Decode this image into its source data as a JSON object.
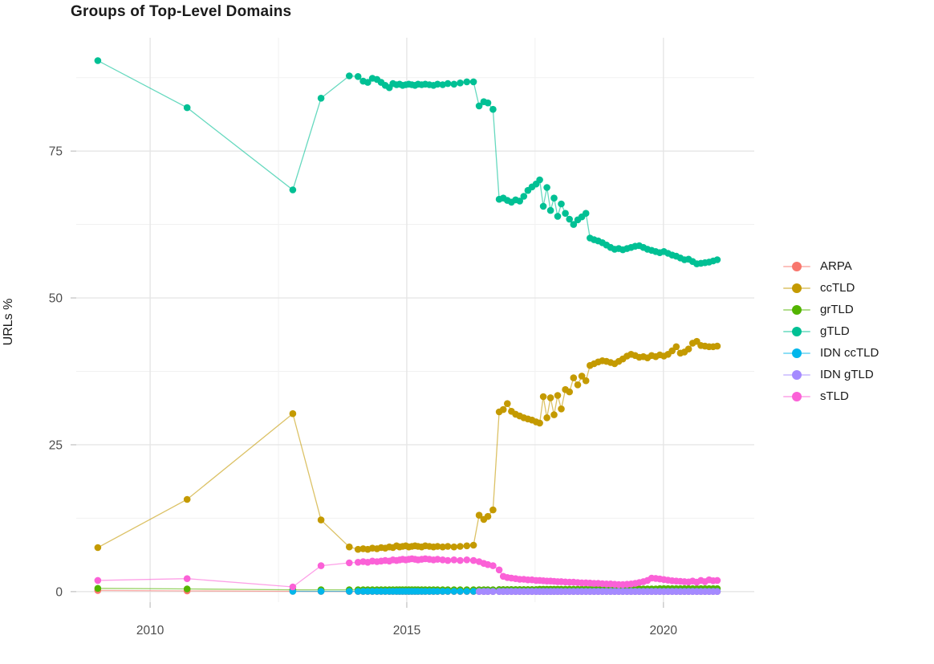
{
  "chart_data": {
    "type": "line",
    "title": "Groups of Top-Level Domains",
    "xlabel": "",
    "ylabel": "URLs %",
    "legend_position": "right",
    "grid": "major+minor",
    "xlim": [
      2008.56,
      2021.77
    ],
    "ylim": [
      -1.8,
      94.3
    ],
    "x_ticks": [
      {
        "value": 2010,
        "label": "2010"
      },
      {
        "value": 2015,
        "label": "2015"
      },
      {
        "value": 2020,
        "label": "2020"
      }
    ],
    "x_minor": [
      2012.5,
      2017.5
    ],
    "y_ticks": [
      {
        "value": 0,
        "label": "0"
      },
      {
        "value": 25,
        "label": "25"
      },
      {
        "value": 50,
        "label": "50"
      },
      {
        "value": 75,
        "label": "75"
      }
    ],
    "y_minor": [
      12.5,
      37.5,
      62.5,
      87.5
    ],
    "x": [
      2008.98,
      2010.72,
      2012.78,
      2013.33,
      2013.88,
      2014.05,
      2014.15,
      2014.24,
      2014.33,
      2014.42,
      2014.5,
      2014.58,
      2014.66,
      2014.73,
      2014.8,
      2014.86,
      2014.92,
      2014.98,
      2015.04,
      2015.1,
      2015.16,
      2015.22,
      2015.29,
      2015.36,
      2015.44,
      2015.52,
      2015.6,
      2015.7,
      2015.8,
      2015.92,
      2016.04,
      2016.17,
      2016.3,
      2016.41,
      2016.5,
      2016.58,
      2016.68,
      2016.8,
      2016.88,
      2016.96,
      2017.04,
      2017.12,
      2017.2,
      2017.28,
      2017.36,
      2017.44,
      2017.52,
      2017.59,
      2017.66,
      2017.73,
      2017.8,
      2017.87,
      2017.94,
      2018.01,
      2018.09,
      2018.17,
      2018.25,
      2018.33,
      2018.41,
      2018.49,
      2018.57,
      2018.65,
      2018.73,
      2018.81,
      2018.89,
      2018.97,
      2019.05,
      2019.13,
      2019.21,
      2019.29,
      2019.37,
      2019.45,
      2019.53,
      2019.61,
      2019.69,
      2019.77,
      2019.85,
      2019.93,
      2020.01,
      2020.09,
      2020.17,
      2020.25,
      2020.33,
      2020.41,
      2020.49,
      2020.57,
      2020.65,
      2020.73,
      2020.81,
      2020.89,
      2020.97,
      2021.05
    ],
    "series": [
      {
        "name": "ARPA",
        "color": "#F8766D",
        "values": [
          0.2,
          0.12,
          0.05,
          0.03,
          0.02,
          0.02,
          0.02,
          0.02,
          0.02,
          0.02,
          0.02,
          0.02,
          0.02,
          0.02,
          0.02,
          0.02,
          0.02,
          0.02,
          0.02,
          0.02,
          0.02,
          0.02,
          0.02,
          0.02,
          0.02,
          0.02,
          0.02,
          0.02,
          0.02,
          0.02,
          0.02,
          0.02,
          0.02,
          0.02,
          0.02,
          0.02,
          0.02,
          0.02,
          0.02,
          0.02,
          0.02,
          0.02,
          0.02,
          0.02,
          0.02,
          0.02,
          0.02,
          0.02,
          0.02,
          0.02,
          0.02,
          0.02,
          0.02,
          0.02,
          0.02,
          0.02,
          0.02,
          0.02,
          0.02,
          0.02,
          0.02,
          0.02,
          0.02,
          0.02,
          0.02,
          0.02,
          0.02,
          0.02,
          0.02,
          0.02,
          0.02,
          0.02,
          0.02,
          0.02,
          0.02,
          0.02,
          0.02,
          0.02,
          0.02,
          0.02,
          0.02,
          0.02,
          0.02,
          0.02,
          0.02,
          0.02,
          0.02,
          0.02,
          0.02,
          0.02,
          0.02,
          0.02
        ]
      },
      {
        "name": "ccTLD",
        "color": "#C49A00",
        "values": [
          7.5,
          15.7,
          30.3,
          12.2,
          7.6,
          7.2,
          7.3,
          7.2,
          7.4,
          7.3,
          7.5,
          7.4,
          7.6,
          7.5,
          7.8,
          7.6,
          7.7,
          7.8,
          7.6,
          7.7,
          7.8,
          7.7,
          7.6,
          7.8,
          7.7,
          7.6,
          7.7,
          7.6,
          7.7,
          7.6,
          7.7,
          7.8,
          7.9,
          13.0,
          12.3,
          12.8,
          13.9,
          30.6,
          31.0,
          32.0,
          30.7,
          30.2,
          29.9,
          29.6,
          29.4,
          29.2,
          28.9,
          28.7,
          33.2,
          29.6,
          33.0,
          30.1,
          33.4,
          31.1,
          34.4,
          34.0,
          36.4,
          35.2,
          36.7,
          35.9,
          38.5,
          38.8,
          39.1,
          39.3,
          39.2,
          39.0,
          38.8,
          39.2,
          39.6,
          40.1,
          40.4,
          40.2,
          39.9,
          40.0,
          39.8,
          40.2,
          40.0,
          40.3,
          40.1,
          40.4,
          41.0,
          41.7,
          40.6,
          40.8,
          41.3,
          42.3,
          42.6,
          41.9,
          41.8,
          41.7,
          41.7,
          41.8
        ]
      },
      {
        "name": "grTLD",
        "color": "#53B400",
        "values": [
          0.55,
          0.45,
          0.3,
          0.3,
          0.3,
          0.3,
          0.3,
          0.3,
          0.3,
          0.3,
          0.3,
          0.3,
          0.3,
          0.3,
          0.3,
          0.3,
          0.3,
          0.3,
          0.3,
          0.3,
          0.3,
          0.3,
          0.3,
          0.3,
          0.3,
          0.3,
          0.3,
          0.3,
          0.3,
          0.3,
          0.3,
          0.3,
          0.3,
          0.3,
          0.3,
          0.3,
          0.3,
          0.35,
          0.35,
          0.35,
          0.35,
          0.35,
          0.35,
          0.35,
          0.35,
          0.35,
          0.35,
          0.4,
          0.4,
          0.4,
          0.4,
          0.4,
          0.4,
          0.4,
          0.4,
          0.4,
          0.4,
          0.4,
          0.4,
          0.4,
          0.4,
          0.4,
          0.45,
          0.45,
          0.45,
          0.45,
          0.45,
          0.45,
          0.45,
          0.45,
          0.45,
          0.45,
          0.45,
          0.45,
          0.45,
          0.45,
          0.45,
          0.5,
          0.5,
          0.5,
          0.5,
          0.5,
          0.5,
          0.5,
          0.5,
          0.5,
          0.5,
          0.5,
          0.5,
          0.5,
          0.5,
          0.5
        ]
      },
      {
        "name": "gTLD",
        "color": "#00C094",
        "values": [
          90.4,
          82.4,
          68.4,
          84.0,
          87.8,
          87.7,
          86.9,
          86.7,
          87.4,
          87.2,
          86.7,
          86.2,
          85.8,
          86.5,
          86.3,
          86.4,
          86.2,
          86.3,
          86.4,
          86.3,
          86.2,
          86.4,
          86.3,
          86.4,
          86.3,
          86.2,
          86.4,
          86.3,
          86.5,
          86.4,
          86.6,
          86.8,
          86.8,
          82.7,
          83.4,
          83.2,
          82.1,
          66.8,
          67.0,
          66.6,
          66.3,
          66.7,
          66.5,
          67.3,
          68.3,
          68.9,
          69.4,
          70.1,
          65.6,
          68.8,
          64.9,
          67.0,
          63.9,
          66.0,
          64.4,
          63.4,
          62.5,
          63.3,
          63.8,
          64.4,
          60.2,
          59.9,
          59.7,
          59.4,
          59.0,
          58.6,
          58.3,
          58.4,
          58.2,
          58.4,
          58.6,
          58.8,
          58.9,
          58.6,
          58.3,
          58.1,
          57.9,
          57.7,
          57.9,
          57.6,
          57.3,
          57.1,
          56.8,
          56.5,
          56.6,
          56.2,
          55.8,
          55.9,
          56.0,
          56.1,
          56.3,
          56.5
        ]
      },
      {
        "name": "IDN ccTLD",
        "color": "#00B6EB",
        "values": [
          null,
          null,
          0.05,
          0.05,
          0.05,
          0.05,
          0.05,
          0.05,
          0.05,
          0.05,
          0.05,
          0.05,
          0.05,
          0.05,
          0.05,
          0.05,
          0.05,
          0.05,
          0.05,
          0.05,
          0.05,
          0.05,
          0.05,
          0.05,
          0.05,
          0.05,
          0.05,
          0.05,
          0.05,
          0.05,
          0.05,
          0.05,
          0.05,
          0.05,
          0.05,
          0.05,
          0.05,
          0.04,
          0.04,
          0.04,
          0.04,
          0.04,
          0.04,
          0.04,
          0.04,
          0.04,
          0.04,
          0.04,
          0.04,
          0.04,
          0.04,
          0.04,
          0.04,
          0.04,
          0.04,
          0.04,
          0.04,
          0.04,
          0.04,
          0.04,
          0.04,
          0.04,
          0.04,
          0.04,
          0.04,
          0.04,
          0.04,
          0.04,
          0.04,
          0.04,
          0.04,
          0.04,
          0.04,
          0.04,
          0.04,
          0.04,
          0.04,
          0.04,
          0.04,
          0.04,
          0.04,
          0.04,
          0.04,
          0.04,
          0.04,
          0.04,
          0.04,
          0.04,
          0.04,
          0.04,
          0.04,
          0.04
        ]
      },
      {
        "name": "IDN gTLD",
        "color": "#A58AFF",
        "values": [
          null,
          null,
          null,
          null,
          null,
          null,
          null,
          null,
          null,
          null,
          null,
          null,
          null,
          null,
          null,
          null,
          null,
          null,
          null,
          null,
          null,
          null,
          null,
          null,
          null,
          null,
          null,
          null,
          null,
          null,
          null,
          null,
          null,
          0.02,
          0.02,
          0.02,
          0.02,
          0.02,
          0.02,
          0.02,
          0.02,
          0.02,
          0.02,
          0.02,
          0.02,
          0.02,
          0.02,
          0.02,
          0.02,
          0.02,
          0.02,
          0.02,
          0.02,
          0.02,
          0.02,
          0.02,
          0.02,
          0.02,
          0.02,
          0.02,
          0.02,
          0.02,
          0.02,
          0.02,
          0.02,
          0.02,
          0.02,
          0.02,
          0.02,
          0.02,
          0.02,
          0.02,
          0.02,
          0.02,
          0.02,
          0.02,
          0.02,
          0.02,
          0.02,
          0.02,
          0.02,
          0.02,
          0.02,
          0.02,
          0.02,
          0.02,
          0.02,
          0.02,
          0.02,
          0.02,
          0.02,
          0.02
        ]
      },
      {
        "name": "sTLD",
        "color": "#FB61D7",
        "values": [
          1.9,
          2.2,
          0.8,
          4.4,
          4.9,
          5.0,
          5.1,
          5.0,
          5.2,
          5.1,
          5.2,
          5.3,
          5.2,
          5.4,
          5.3,
          5.4,
          5.5,
          5.4,
          5.5,
          5.6,
          5.5,
          5.4,
          5.5,
          5.6,
          5.5,
          5.4,
          5.5,
          5.4,
          5.3,
          5.4,
          5.3,
          5.4,
          5.3,
          5.1,
          4.8,
          4.6,
          4.4,
          3.7,
          2.6,
          2.4,
          2.3,
          2.2,
          2.1,
          2.1,
          2.0,
          2.0,
          1.9,
          1.9,
          1.85,
          1.8,
          1.8,
          1.75,
          1.7,
          1.7,
          1.65,
          1.6,
          1.6,
          1.55,
          1.5,
          1.5,
          1.45,
          1.4,
          1.4,
          1.35,
          1.3,
          1.3,
          1.25,
          1.2,
          1.2,
          1.25,
          1.3,
          1.4,
          1.55,
          1.7,
          1.9,
          2.3,
          2.25,
          2.15,
          2.05,
          1.95,
          1.85,
          1.8,
          1.75,
          1.7,
          1.65,
          1.8,
          1.6,
          1.9,
          1.7,
          2.0,
          1.85,
          1.9
        ]
      }
    ]
  },
  "style": {
    "grid_major_color": "#E6E6E6",
    "grid_minor_color": "#F1F1F1",
    "tick_color": "#C9C9C9",
    "tick_label_color": "#4D4D4D",
    "text_color": "#1a1a1a"
  }
}
